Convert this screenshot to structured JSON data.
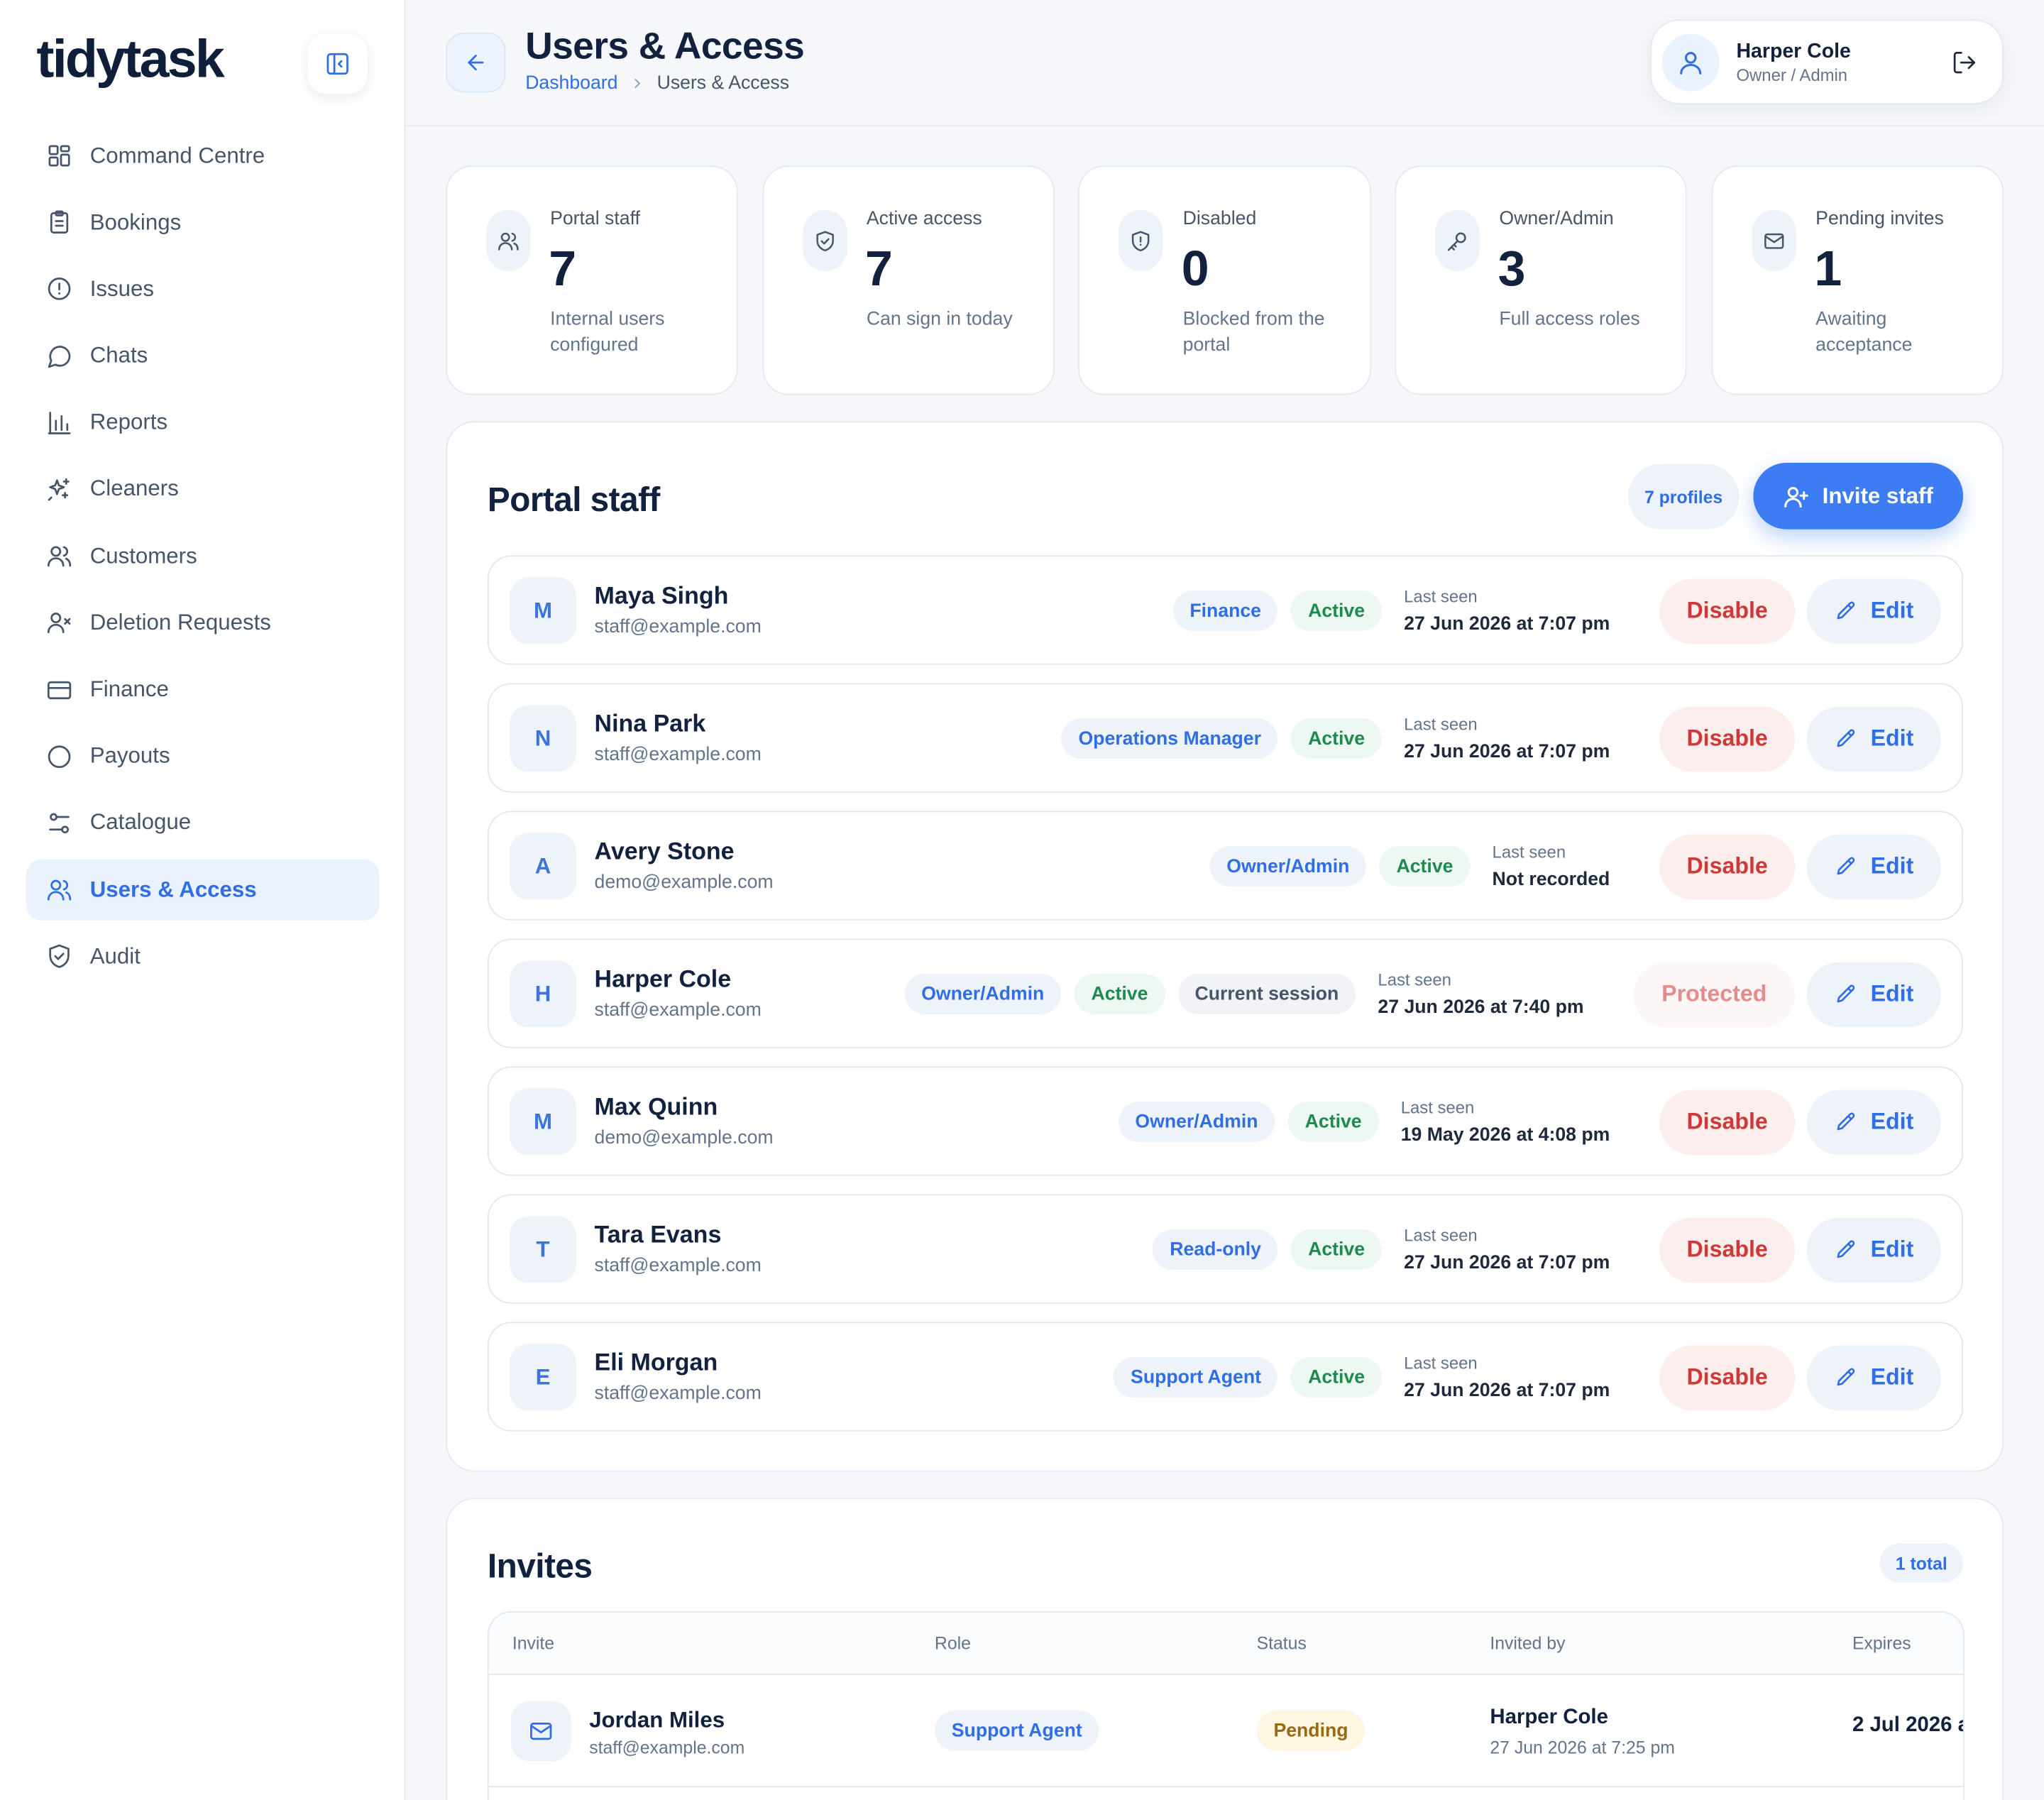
{
  "app": {
    "logo": "tidytask"
  },
  "sidebar": {
    "items": [
      {
        "label": "Command Centre",
        "icon": "grid-icon"
      },
      {
        "label": "Bookings",
        "icon": "clipboard-icon"
      },
      {
        "label": "Issues",
        "icon": "alert-circle-icon"
      },
      {
        "label": "Chats",
        "icon": "chat-bubble-icon"
      },
      {
        "label": "Reports",
        "icon": "bar-chart-icon"
      },
      {
        "label": "Cleaners",
        "icon": "sparkles-icon"
      },
      {
        "label": "Customers",
        "icon": "users-icon"
      },
      {
        "label": "Deletion Requests",
        "icon": "user-x-icon"
      },
      {
        "label": "Finance",
        "icon": "credit-card-icon"
      },
      {
        "label": "Payouts",
        "icon": "circle-icon"
      },
      {
        "label": "Catalogue",
        "icon": "sliders-icon"
      },
      {
        "label": "Users & Access",
        "icon": "users-icon",
        "active": true
      },
      {
        "label": "Audit",
        "icon": "shield-check-icon"
      }
    ]
  },
  "header": {
    "title": "Users & Access",
    "breadcrumb": {
      "parent": "Dashboard",
      "current": "Users & Access"
    },
    "user": {
      "name": "Harper Cole",
      "role": "Owner / Admin"
    }
  },
  "stats": [
    {
      "label": "Portal staff",
      "value": "7",
      "desc": "Internal users configured",
      "icon": "users-icon"
    },
    {
      "label": "Active access",
      "value": "7",
      "desc": "Can sign in today",
      "icon": "shield-check-icon"
    },
    {
      "label": "Disabled",
      "value": "0",
      "desc": "Blocked from the portal",
      "icon": "shield-alert-icon"
    },
    {
      "label": "Owner/Admin",
      "value": "3",
      "desc": "Full access roles",
      "icon": "key-icon"
    },
    {
      "label": "Pending invites",
      "value": "1",
      "desc": "Awaiting acceptance",
      "icon": "mail-icon"
    }
  ],
  "staff": {
    "title": "Portal staff",
    "count_label": "7 profiles",
    "invite_label": "Invite staff",
    "last_seen_label": "Last seen",
    "edit_label": "Edit",
    "rows": [
      {
        "initial": "M",
        "name": "Maya Singh",
        "email": "staff@example.com",
        "role": "Finance",
        "status": "Active",
        "session": "",
        "last_seen": "27 Jun 2026 at 7:07 pm",
        "action": "Disable",
        "protected": false
      },
      {
        "initial": "N",
        "name": "Nina Park",
        "email": "staff@example.com",
        "role": "Operations Manager",
        "status": "Active",
        "session": "",
        "last_seen": "27 Jun 2026 at 7:07 pm",
        "action": "Disable",
        "protected": false
      },
      {
        "initial": "A",
        "name": "Avery Stone",
        "email": "demo@example.com",
        "role": "Owner/Admin",
        "status": "Active",
        "session": "",
        "last_seen": "Not recorded",
        "action": "Disable",
        "protected": false
      },
      {
        "initial": "H",
        "name": "Harper Cole",
        "email": "staff@example.com",
        "role": "Owner/Admin",
        "status": "Active",
        "session": "Current session",
        "last_seen": "27 Jun 2026 at 7:40 pm",
        "action": "Protected",
        "protected": true
      },
      {
        "initial": "M",
        "name": "Max Quinn",
        "email": "demo@example.com",
        "role": "Owner/Admin",
        "status": "Active",
        "session": "",
        "last_seen": "19 May 2026 at 4:08 pm",
        "action": "Disable",
        "protected": false
      },
      {
        "initial": "T",
        "name": "Tara Evans",
        "email": "staff@example.com",
        "role": "Read-only",
        "status": "Active",
        "session": "",
        "last_seen": "27 Jun 2026 at 7:07 pm",
        "action": "Disable",
        "protected": false
      },
      {
        "initial": "E",
        "name": "Eli Morgan",
        "email": "staff@example.com",
        "role": "Support Agent",
        "status": "Active",
        "session": "",
        "last_seen": "27 Jun 2026 at 7:07 pm",
        "action": "Disable",
        "protected": false
      }
    ]
  },
  "invites": {
    "title": "Invites",
    "count_label": "1 total",
    "columns": [
      "Invite",
      "Role",
      "Status",
      "Invited by",
      "Expires"
    ],
    "rows": [
      {
        "name": "Jordan Miles",
        "email": "staff@example.com",
        "role": "Support Agent",
        "status": "Pending",
        "invited_by": "Harper Cole",
        "invited_at": "27 Jun 2026 at 7:25 pm",
        "expires": "2 Jul 2026 a"
      }
    ]
  }
}
